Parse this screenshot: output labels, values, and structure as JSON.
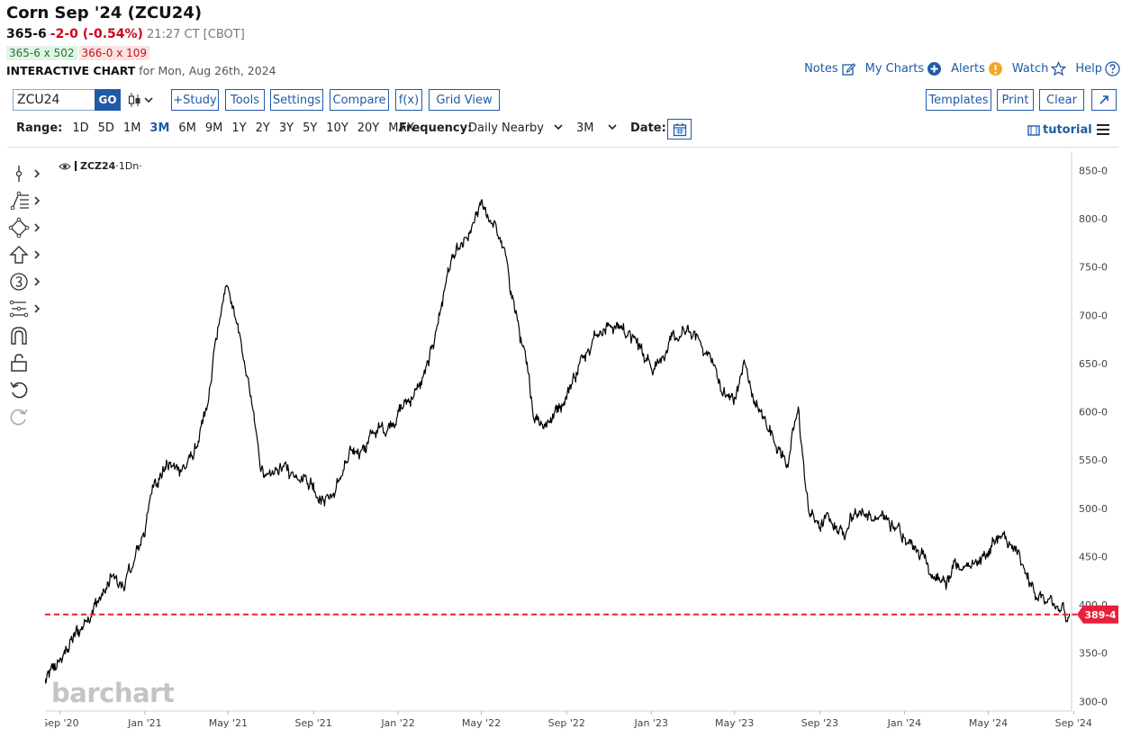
{
  "header": {
    "title": "Corn Sep '24 (ZCU24)",
    "last": "365-6",
    "change": "-2-0 (-0.54%)",
    "time": "21:27 CT [CBOT]",
    "bid": "365-6 x 502",
    "ask": "366-0 x 109",
    "interactive_label": "INTERACTIVE CHART",
    "interactive_date": "for Mon, Aug 26th, 2024"
  },
  "toplinks": {
    "notes": "Notes",
    "mycharts": "My Charts",
    "alerts": "Alerts",
    "watch": "Watch",
    "help": "Help"
  },
  "toolbar": {
    "symbol_value": "ZCU24",
    "go": "GO",
    "study": "+Study",
    "tools": "Tools",
    "settings": "Settings",
    "compare": "Compare",
    "fx": "f(x)",
    "gridview": "Grid View",
    "templates": "Templates",
    "print": "Print",
    "clear": "Clear"
  },
  "range": {
    "label": "Range:",
    "options": [
      "1D",
      "5D",
      "1M",
      "3M",
      "6M",
      "9M",
      "1Y",
      "2Y",
      "3Y",
      "5Y",
      "10Y",
      "20Y",
      "MAX"
    ],
    "active": "3M",
    "frequency_label": "Frequency:",
    "frequency_value": "Daily Nearby",
    "interval_value": "3M",
    "date_label": "Date:",
    "tutorial": "tutorial"
  },
  "legend": {
    "symbol": "ZCZ24",
    "suffix": "·1Dn·"
  },
  "watermark": "barchart",
  "chart_data": {
    "type": "line",
    "series": [
      {
        "name": "ZCZ24",
        "x": [
          "2020-08-10",
          "2020-09-01",
          "2020-09-15",
          "2020-10-01",
          "2020-10-15",
          "2020-11-01",
          "2020-11-15",
          "2020-12-01",
          "2020-12-15",
          "2021-01-01",
          "2021-01-15",
          "2021-02-01",
          "2021-02-15",
          "2021-03-01",
          "2021-03-15",
          "2021-04-01",
          "2021-04-15",
          "2021-05-01",
          "2021-05-07",
          "2021-05-15",
          "2021-06-01",
          "2021-06-15",
          "2021-07-01",
          "2021-07-15",
          "2021-08-01",
          "2021-08-15",
          "2021-09-01",
          "2021-09-15",
          "2021-10-01",
          "2021-10-15",
          "2021-11-01",
          "2021-11-15",
          "2021-12-01",
          "2021-12-15",
          "2022-01-01",
          "2022-01-15",
          "2022-02-01",
          "2022-02-15",
          "2022-03-01",
          "2022-03-15",
          "2022-04-01",
          "2022-04-15",
          "2022-05-01",
          "2022-05-15",
          "2022-06-01",
          "2022-06-15",
          "2022-07-01",
          "2022-07-15",
          "2022-08-01",
          "2022-08-15",
          "2022-09-01",
          "2022-09-15",
          "2022-10-01",
          "2022-10-15",
          "2022-11-01",
          "2022-11-15",
          "2022-12-01",
          "2022-12-15",
          "2023-01-01",
          "2023-01-15",
          "2023-02-01",
          "2023-02-15",
          "2023-03-01",
          "2023-03-15",
          "2023-04-01",
          "2023-04-15",
          "2023-05-01",
          "2023-05-15",
          "2023-06-01",
          "2023-06-15",
          "2023-07-01",
          "2023-07-15",
          "2023-08-01",
          "2023-08-15",
          "2023-09-01",
          "2023-09-15",
          "2023-10-01",
          "2023-10-15",
          "2023-11-01",
          "2023-11-15",
          "2023-12-01",
          "2023-12-15",
          "2024-01-01",
          "2024-01-15",
          "2024-02-01",
          "2024-02-15",
          "2024-03-01",
          "2024-03-15",
          "2024-04-01",
          "2024-04-15",
          "2024-05-01",
          "2024-05-15",
          "2024-06-01",
          "2024-06-15",
          "2024-07-01",
          "2024-07-15",
          "2024-08-01",
          "2024-08-15",
          "2024-08-26"
        ],
        "values": [
          320,
          340,
          360,
          375,
          395,
          410,
          425,
          420,
          440,
          480,
          530,
          545,
          540,
          545,
          560,
          600,
          680,
          735,
          715,
          690,
          620,
          550,
          525,
          545,
          535,
          540,
          525,
          510,
          515,
          540,
          560,
          565,
          580,
          585,
          600,
          610,
          625,
          650,
          700,
          750,
          765,
          780,
          815,
          800,
          770,
          720,
          660,
          600,
          590,
          600,
          620,
          640,
          670,
          685,
          690,
          690,
          680,
          665,
          650,
          660,
          670,
          680,
          680,
          670,
          650,
          620,
          610,
          650,
          605,
          590,
          570,
          545,
          600,
          500,
          480,
          490,
          475,
          490,
          500,
          490,
          490,
          480,
          475,
          465,
          450,
          430,
          420,
          435,
          445,
          445,
          455,
          470,
          460,
          445,
          420,
          410,
          395,
          392,
          390
        ]
      }
    ],
    "xtick_labels": [
      "Sep '20",
      "Jan '21",
      "May '21",
      "Sep '21",
      "Jan '22",
      "May '22",
      "Sep '22",
      "Jan '23",
      "May '23",
      "Sep '23",
      "Jan '24",
      "May '24",
      "Sep '24"
    ],
    "ytick_labels": [
      "300-0",
      "350-0",
      "400-0",
      "450-0",
      "500-0",
      "550-0",
      "600-0",
      "650-0",
      "700-0",
      "750-0",
      "800-0",
      "850-0"
    ],
    "ylim": [
      290,
      870
    ],
    "price_line": {
      "value": 390,
      "label": "389-4",
      "color": "#e8203a"
    },
    "line_color": "#000000",
    "grid": false,
    "axis_position": "right"
  }
}
